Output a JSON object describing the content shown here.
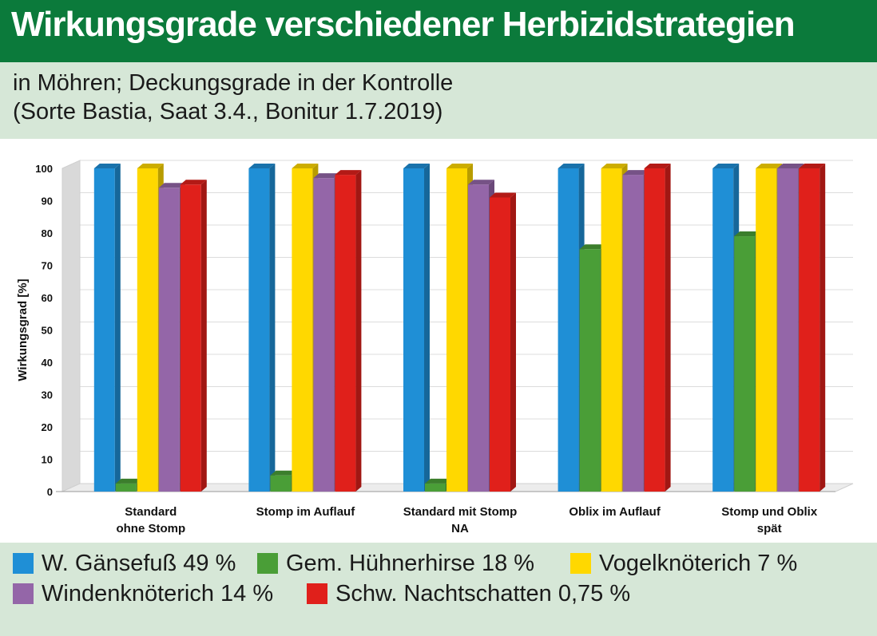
{
  "header": {
    "title": "Wirkungsgrade verschiedener Herbizidstrategien",
    "subtitle_line1": "in Möhren; Deckungsgrade in der Kontrolle",
    "subtitle_line2": "(Sorte Bastia, Saat 3.4., Bonitur 1.7.2019)"
  },
  "colors": {
    "header_bg": "#0b7a3b",
    "panel_bg": "#d6e7d7",
    "blue": "#1f8fd6",
    "green": "#4a9e37",
    "yellow": "#ffd800",
    "purple": "#9466a8",
    "red": "#e0201b"
  },
  "chart_data": {
    "type": "bar",
    "ylabel": "Wirkungsgrad [%]",
    "xlabel": "",
    "ylim": [
      0,
      100
    ],
    "yticks": [
      0,
      10,
      20,
      30,
      40,
      50,
      60,
      70,
      80,
      90,
      100
    ],
    "grid": true,
    "categories": [
      [
        "Standard",
        "ohne  Stomp"
      ],
      [
        "Stomp  im Auflauf"
      ],
      [
        "Standard  mit Stomp",
        "NA"
      ],
      [
        "Oblix im Auflauf"
      ],
      [
        "Stomp  und  Oblix",
        "spät"
      ]
    ],
    "series": [
      {
        "name": "W. Gänsefuß 49 %",
        "color": "#1f8fd6",
        "values": [
          100,
          100,
          100,
          100,
          100
        ]
      },
      {
        "name": "Gem. Hühnerhirse 18 %",
        "color": "#4a9e37",
        "values": [
          2.5,
          5,
          2.5,
          75,
          79
        ]
      },
      {
        "name": "Vogelknöterich 7 %",
        "color": "#ffd800",
        "values": [
          100,
          100,
          100,
          100,
          100
        ]
      },
      {
        "name": "Windenknöterich 14 %",
        "color": "#9466a8",
        "values": [
          94,
          97,
          95,
          98,
          100
        ]
      },
      {
        "name": "Schw. Nachtschatten 0,75 %",
        "color": "#e0201b",
        "values": [
          95,
          98,
          91,
          100,
          100
        ]
      }
    ]
  }
}
